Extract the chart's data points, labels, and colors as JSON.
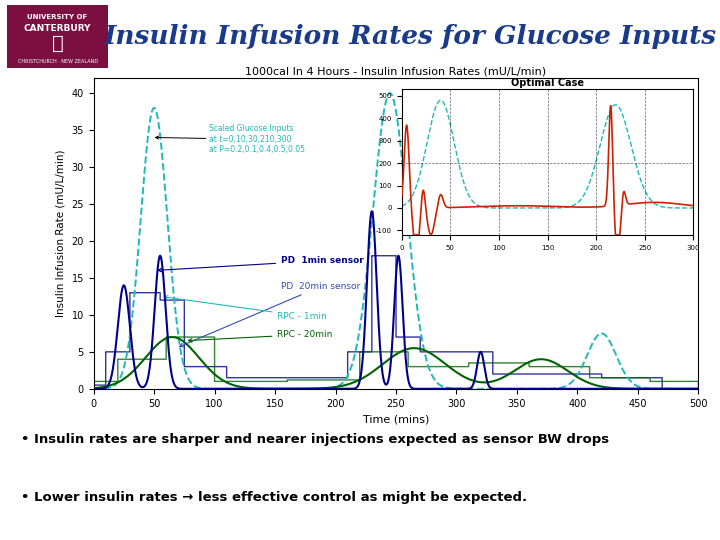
{
  "title": "Insulin Infusion Rates for Glucose Inputs",
  "title_color": "#1a3a8b",
  "background_color": "#ffffff",
  "bullet1": "• Insulin rates are sharper and nearer injections expected as sensor BW drops",
  "bullet2": "• Lower insulin rates → less effective control as might be expected.",
  "chart_title": "1000cal In 4 Hours - Insulin Infusion Rates (mU/L/min)",
  "xlabel": "Time (mins)",
  "ylabel": "Insulin Infusion Rate (mU/L/min)",
  "annotation_glucose": "Scaled Glucose Inputs\nat t=0,10,30,210,300\nat P=0.2,0.1,0.4,0.5,0.05",
  "annotation_pd1": "PD  1min sensor",
  "annotation_pd2": "PD  20min sensor",
  "annotation_rpc1": "RPC - 1min",
  "annotation_rpc2": "RPC - 20min",
  "inset_title": "Optimal Case",
  "colors": {
    "cyan_dashed": "#20b8b8",
    "dark_blue": "#00008b",
    "dark_green": "#006400",
    "step_blue": "#00008b",
    "step_green": "#228b22",
    "inset_red": "#cc2200",
    "inset_cyan": "#20b8b8"
  },
  "logo_color": "#7b1040"
}
